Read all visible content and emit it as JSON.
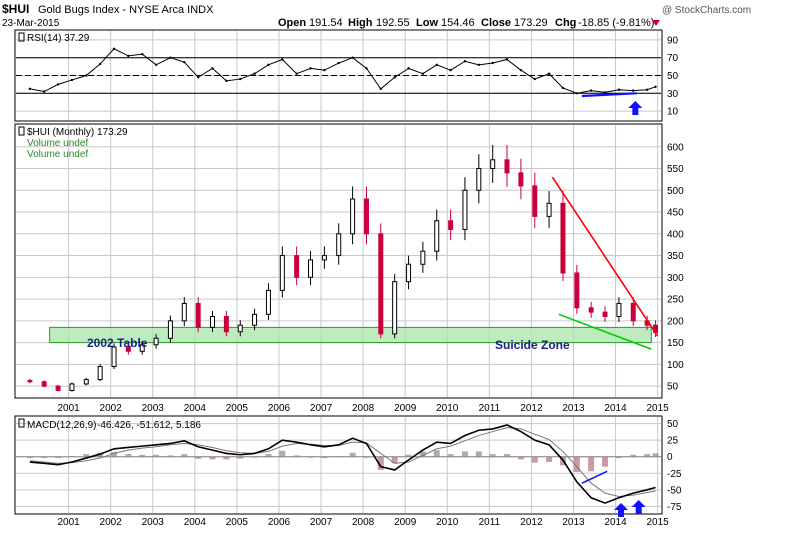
{
  "header": {
    "symbol": "$HUI",
    "name": "Gold Bugs Index - NYSE Arca INDX",
    "date": "23-Mar-2015",
    "open_label": "Open",
    "open": "191.54",
    "high_label": "High",
    "high": "192.55",
    "low_label": "Low",
    "low": "154.46",
    "close_label": "Close",
    "close": "173.29",
    "chg_label": "Chg",
    "chg": "-18.85 (-9.81%)",
    "watermark": "@ StockCharts.com"
  },
  "colors": {
    "up": "#000000",
    "down": "#c8003c",
    "grid": "#c8c8c8",
    "rsi_line": "#000000",
    "rsi_fill": "#9a9a9a",
    "zone_fill": "#a8e6a8",
    "zone_border": "#2a9a2a",
    "red_trend": "#ff0000",
    "green_trend": "#00cc00",
    "blue_mark": "#1010ff",
    "hist": "#b07080"
  },
  "chart_data": [
    {
      "type": "line",
      "panel": "rsi",
      "legend": "RSI(14) 37.29",
      "yticks": [
        10,
        30,
        50,
        70,
        90
      ],
      "ylim": [
        0,
        100
      ],
      "reference_lines": [
        30,
        50,
        70
      ],
      "x": [
        2000.33,
        2000.67,
        2001.0,
        2001.33,
        2001.67,
        2002.0,
        2002.33,
        2002.67,
        2003.0,
        2003.33,
        2003.67,
        2004.0,
        2004.33,
        2004.67,
        2005.0,
        2005.33,
        2005.67,
        2006.0,
        2006.33,
        2006.67,
        2007.0,
        2007.33,
        2007.67,
        2008.0,
        2008.33,
        2008.67,
        2009.0,
        2009.33,
        2009.67,
        2010.0,
        2010.33,
        2010.67,
        2011.0,
        2011.33,
        2011.67,
        2012.0,
        2012.33,
        2012.67,
        2013.0,
        2013.33,
        2013.67,
        2014.0,
        2014.33,
        2014.67,
        2015.0,
        2015.2
      ],
      "values": [
        35,
        32,
        40,
        45,
        50,
        63,
        80,
        72,
        74,
        62,
        70,
        65,
        48,
        58,
        44,
        46,
        52,
        62,
        68,
        52,
        58,
        56,
        64,
        70,
        58,
        35,
        48,
        58,
        52,
        62,
        56,
        66,
        62,
        64,
        68,
        56,
        46,
        52,
        36,
        30,
        33,
        31,
        34,
        33,
        34,
        37.29
      ]
    },
    {
      "type": "bar",
      "panel": "price",
      "legend": "$HUI (Monthly) 173.29",
      "legend_lines": [
        "Volume undef",
        "Volume undef"
      ],
      "yticks": [
        50,
        100,
        150,
        200,
        250,
        300,
        350,
        400,
        450,
        500,
        550,
        600
      ],
      "ylim": [
        25,
        650
      ],
      "xticks": [
        "2001",
        "2002",
        "2003",
        "2004",
        "2005",
        "2006",
        "2007",
        "2008",
        "2009",
        "2010",
        "2011",
        "2012",
        "2013",
        "2014",
        "2015"
      ],
      "x": [
        2000.33,
        2000.67,
        2001.0,
        2001.33,
        2001.67,
        2002.0,
        2002.33,
        2002.67,
        2003.0,
        2003.33,
        2003.67,
        2004.0,
        2004.33,
        2004.67,
        2005.0,
        2005.33,
        2005.67,
        2006.0,
        2006.33,
        2006.67,
        2007.0,
        2007.33,
        2007.67,
        2008.0,
        2008.33,
        2008.67,
        2009.0,
        2009.33,
        2009.67,
        2010.0,
        2010.33,
        2010.67,
        2011.0,
        2011.33,
        2011.67,
        2012.0,
        2012.33,
        2012.67,
        2013.0,
        2013.33,
        2013.67,
        2014.0,
        2014.33,
        2014.67,
        2015.0,
        2015.2
      ],
      "close": [
        60,
        50,
        40,
        55,
        65,
        95,
        140,
        130,
        145,
        160,
        200,
        240,
        185,
        210,
        175,
        190,
        215,
        270,
        350,
        300,
        340,
        350,
        400,
        480,
        400,
        170,
        290,
        330,
        360,
        430,
        410,
        500,
        550,
        570,
        540,
        510,
        440,
        470,
        310,
        230,
        220,
        210,
        240,
        200,
        190,
        173.29
      ],
      "annotations": [
        {
          "text": "2002 Table",
          "y_range": [
            150,
            185
          ],
          "x_range": [
            2000.8,
            2015.1
          ]
        },
        {
          "text": "Suicide Zone"
        }
      ],
      "trendlines": [
        {
          "name": "red",
          "from": [
            2012.75,
            530
          ],
          "to": [
            2015.25,
            165
          ]
        },
        {
          "name": "green",
          "from": [
            2012.9,
            215
          ],
          "to": [
            2015.1,
            135
          ]
        }
      ]
    },
    {
      "type": "line",
      "panel": "macd",
      "legend_name": "MACD(12,26,9)",
      "legend_values": "-46.426, -51.612, 5.186",
      "yticks": [
        -75,
        -50,
        -25,
        0,
        25,
        50
      ],
      "ylim": [
        -85,
        60
      ],
      "x": [
        2000.33,
        2000.67,
        2001.0,
        2001.33,
        2001.67,
        2002.0,
        2002.33,
        2002.67,
        2003.0,
        2003.33,
        2003.67,
        2004.0,
        2004.33,
        2004.67,
        2005.0,
        2005.33,
        2005.67,
        2006.0,
        2006.33,
        2006.67,
        2007.0,
        2007.33,
        2007.67,
        2008.0,
        2008.33,
        2008.67,
        2009.0,
        2009.33,
        2009.67,
        2010.0,
        2010.33,
        2010.67,
        2011.0,
        2011.33,
        2011.67,
        2012.0,
        2012.33,
        2012.67,
        2013.0,
        2013.33,
        2013.67,
        2014.0,
        2014.33,
        2014.67,
        2015.0,
        2015.2
      ],
      "macd": [
        -8,
        -10,
        -12,
        -8,
        -2,
        4,
        12,
        14,
        16,
        18,
        20,
        24,
        15,
        10,
        5,
        3,
        5,
        12,
        25,
        22,
        18,
        15,
        18,
        28,
        20,
        -15,
        -20,
        -5,
        10,
        22,
        20,
        32,
        40,
        42,
        48,
        38,
        25,
        18,
        -5,
        -38,
        -62,
        -70,
        -62,
        -55,
        -50,
        -46.426
      ],
      "signal": [
        -6,
        -8,
        -10,
        -9,
        -6,
        -2,
        5,
        10,
        13,
        15,
        18,
        20,
        18,
        14,
        9,
        6,
        5,
        8,
        16,
        20,
        19,
        17,
        17,
        22,
        21,
        5,
        -10,
        -8,
        2,
        12,
        16,
        24,
        32,
        38,
        44,
        42,
        34,
        26,
        8,
        -15,
        -40,
        -55,
        -60,
        -58,
        -54,
        -51.612
      ]
    }
  ]
}
